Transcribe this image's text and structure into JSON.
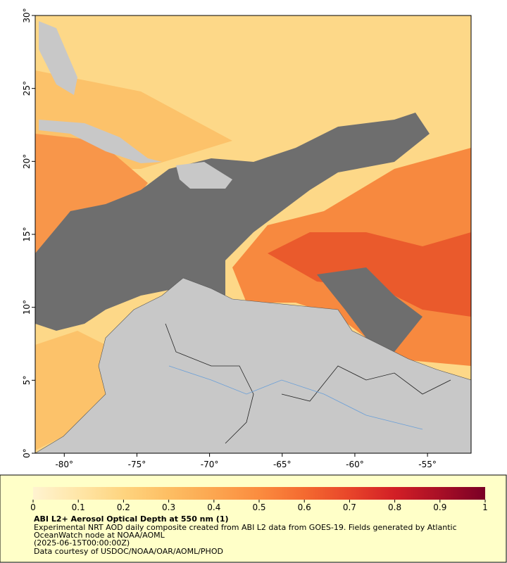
{
  "map": {
    "xlim": [
      -82,
      -52
    ],
    "ylim": [
      0,
      30
    ],
    "xticks": [
      {
        "value": -80,
        "label": "-80°"
      },
      {
        "value": -75,
        "label": "-75°"
      },
      {
        "value": -70,
        "label": "-70°"
      },
      {
        "value": -65,
        "label": "-65°"
      },
      {
        "value": -60,
        "label": "-60°"
      },
      {
        "value": -55,
        "label": "-55°"
      }
    ],
    "yticks": [
      {
        "value": 0,
        "label": "0°"
      },
      {
        "value": 5,
        "label": "5°"
      },
      {
        "value": 10,
        "label": "10°"
      },
      {
        "value": 15,
        "label": "15°"
      },
      {
        "value": 20,
        "label": "20°"
      },
      {
        "value": 25,
        "label": "25°"
      },
      {
        "value": 30,
        "label": "30°"
      }
    ]
  },
  "colorbar": {
    "range": [
      0,
      1
    ],
    "ticks": [
      0,
      0.1,
      0.2,
      0.3,
      0.4,
      0.5,
      0.6,
      0.7,
      0.8,
      0.9,
      1
    ],
    "colors": [
      "#fff3d0",
      "#ffe6a8",
      "#fed47f",
      "#fdbe63",
      "#fca650",
      "#fb8c3f",
      "#f46a30",
      "#e8452a",
      "#d21f26",
      "#a80f26",
      "#7a0026"
    ]
  },
  "caption": {
    "title": "ABI L2+ Aerosol Optical Depth at 550 nm (1)",
    "lines": [
      "Experimental NRT AOD daily composite created from ABI L2 data from GOES-19. Fields generated by Atlantic",
      "OceanWatch node at NOAA/AOML",
      "(2025-06-15T00:00:00Z)",
      "Data courtesy of USDOC/NOAA/OAR/AOML/PHOD"
    ]
  }
}
